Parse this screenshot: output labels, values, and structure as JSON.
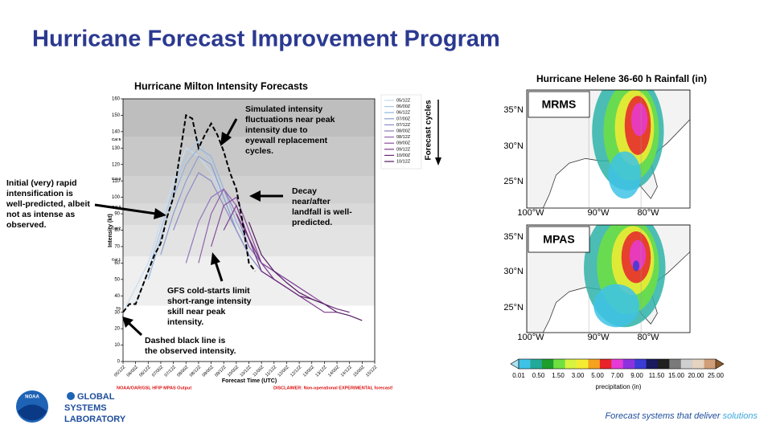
{
  "slide": {
    "title": "Hurricane Forecast Improvement Program",
    "logo": "NOAA",
    "lab": [
      "GLOBAL",
      "SYSTEMS",
      "LABORATORY"
    ],
    "tagline": "Forecast systems that deliver",
    "tagline_emphasis": "solutions"
  },
  "chart_data": {
    "type": "line",
    "title": "Hurricane Milton Intensity Forecasts",
    "x_label": "Forecast Time (UTC)",
    "y_label": "Intensity (kt)",
    "legend_title": "Forecast cycles",
    "source": "NOAA/OAR/GSL HFIP MPAS Output",
    "disclaimer": "DISCLAIMER: Non-operational EXPERIMENTAL forecast!",
    "xlim": [
      0,
      240
    ],
    "xticks": [
      {
        "value": 0,
        "label": "05/12Z"
      },
      {
        "value": 12,
        "label": "06/00Z"
      },
      {
        "value": 24,
        "label": "06/12Z"
      },
      {
        "value": 36,
        "label": "07/00Z"
      },
      {
        "value": 48,
        "label": "07/12Z"
      },
      {
        "value": 60,
        "label": "08/00Z"
      },
      {
        "value": 72,
        "label": "08/12Z"
      },
      {
        "value": 84,
        "label": "09/00Z"
      },
      {
        "value": 96,
        "label": "09/12Z"
      },
      {
        "value": 108,
        "label": "10/00Z"
      },
      {
        "value": 120,
        "label": "10/12Z"
      },
      {
        "value": 132,
        "label": "11/00Z"
      },
      {
        "value": 144,
        "label": "11/12Z"
      },
      {
        "value": 156,
        "label": "12/00Z"
      },
      {
        "value": 168,
        "label": "12/12Z"
      },
      {
        "value": 180,
        "label": "13/00Z"
      },
      {
        "value": 192,
        "label": "13/12Z"
      },
      {
        "value": 204,
        "label": "14/00Z"
      },
      {
        "value": 216,
        "label": "14/12Z"
      },
      {
        "value": 228,
        "label": "15/00Z"
      },
      {
        "value": 240,
        "label": "15/12Z"
      }
    ],
    "ylim": [
      0,
      160
    ],
    "yticks": [
      0,
      10,
      20,
      30,
      40,
      50,
      60,
      70,
      80,
      90,
      100,
      110,
      120,
      130,
      140,
      150,
      160
    ],
    "category_bands": [
      {
        "label": "TS",
        "value": 34
      },
      {
        "label": "Cat 1",
        "value": 64
      },
      {
        "label": "Cat 2",
        "value": 83
      },
      {
        "label": "Cat 3",
        "value": 96
      },
      {
        "label": "Cat 4",
        "value": 113
      },
      {
        "label": "Cat 5",
        "value": 137
      }
    ],
    "band_colors": [
      "#ffffff",
      "#efefef",
      "#e3e3e3",
      "#d9d9d9",
      "#d1d1d1",
      "#c8c8c8",
      "#bebebe"
    ],
    "series": [
      {
        "color": "#000000",
        "dashed": true,
        "x": [
          0,
          6,
          12,
          18,
          24,
          30,
          36,
          42,
          48,
          54,
          60,
          66,
          72,
          78,
          84,
          90,
          96,
          102,
          108,
          114,
          120,
          126
        ],
        "values": [
          30,
          35,
          35,
          45,
          55,
          65,
          72,
          88,
          100,
          125,
          150,
          148,
          130,
          138,
          145,
          138,
          128,
          115,
          105,
          85,
          60,
          55
        ]
      },
      {
        "name": "05/12Z",
        "color": "#c6dcef",
        "x": [
          0,
          12,
          24,
          36,
          48,
          60,
          72,
          84,
          96,
          108,
          120
        ],
        "values": [
          30,
          45,
          60,
          85,
          110,
          130,
          125,
          115,
          100,
          80,
          65
        ]
      },
      {
        "name": "06/00Z",
        "color": "#abc8e6",
        "x": [
          12,
          24,
          36,
          48,
          60,
          72,
          84,
          96,
          108,
          120
        ],
        "values": [
          35,
          55,
          80,
          105,
          125,
          135,
          120,
          100,
          80,
          65
        ]
      },
      {
        "name": "06/12Z",
        "color": "#93b4dc",
        "x": [
          24,
          36,
          48,
          60,
          72,
          84,
          96,
          108,
          120,
          132
        ],
        "values": [
          50,
          75,
          100,
          120,
          130,
          125,
          105,
          85,
          70,
          60
        ]
      },
      {
        "name": "07/00Z",
        "color": "#8a9fd2",
        "x": [
          36,
          48,
          60,
          72,
          84,
          96,
          108,
          120,
          132,
          144
        ],
        "values": [
          65,
          90,
          110,
          125,
          120,
          100,
          80,
          65,
          55,
          50
        ]
      },
      {
        "name": "07/12Z",
        "color": "#8b8cc8",
        "x": [
          48,
          60,
          72,
          84,
          96,
          108,
          120,
          132,
          144,
          156
        ],
        "values": [
          80,
          100,
          115,
          110,
          95,
          80,
          65,
          55,
          50,
          45
        ]
      },
      {
        "name": "08/00Z",
        "color": "#8f78bb",
        "x": [
          60,
          72,
          84,
          96,
          108,
          120,
          132,
          144,
          156,
          168
        ],
        "values": [
          60,
          85,
          100,
          105,
          90,
          70,
          60,
          55,
          50,
          45
        ]
      },
      {
        "name": "08/12Z",
        "color": "#9062ad",
        "x": [
          72,
          84,
          96,
          108,
          120,
          132,
          144,
          156,
          168,
          180
        ],
        "values": [
          60,
          90,
          105,
          95,
          75,
          60,
          55,
          50,
          45,
          40
        ]
      },
      {
        "name": "09/00Z",
        "color": "#8a4d9e",
        "x": [
          84,
          96,
          108,
          120,
          132,
          144,
          156,
          168,
          180,
          192
        ],
        "values": [
          70,
          95,
          100,
          80,
          60,
          55,
          50,
          45,
          40,
          35
        ]
      },
      {
        "name": "09/12Z",
        "color": "#7c3a8c",
        "x": [
          96,
          108,
          120,
          132,
          144,
          156,
          168,
          180,
          192,
          204
        ],
        "values": [
          80,
          95,
          75,
          60,
          50,
          45,
          40,
          35,
          30,
          30
        ]
      },
      {
        "name": "10/00Z",
        "color": "#6a2979",
        "x": [
          108,
          120,
          132,
          144,
          156,
          168,
          180,
          192,
          204,
          216
        ],
        "values": [
          90,
          75,
          55,
          50,
          45,
          40,
          38,
          35,
          32,
          30
        ]
      },
      {
        "name": "10/12Z",
        "color": "#531a61",
        "x": [
          120,
          132,
          144,
          156,
          168,
          180,
          192,
          204,
          216,
          228
        ],
        "values": [
          85,
          65,
          55,
          48,
          42,
          38,
          35,
          30,
          28,
          25
        ]
      }
    ],
    "annotations": [
      [
        "Simulated intensity",
        "fluctuations near peak",
        "intensity due to",
        "eyewall replacement",
        "cycles."
      ],
      [
        "Decay",
        "near/after",
        "landfall is well-",
        "predicted."
      ],
      [
        "Initial (very) rapid",
        "intensification is",
        "well-predicted, albeit",
        "not as intense as",
        "observed."
      ],
      [
        "GFS cold-starts limit",
        "short-range intensity",
        "skill near peak",
        "intensity."
      ],
      [
        "Dashed black line is",
        "the observed intensity."
      ]
    ]
  },
  "map_data": {
    "title": "Hurricane Helene 36-60 h Rainfall (in)",
    "panels": [
      "MRMS",
      "MPAS"
    ],
    "lat_labels": [
      "35°N",
      "30°N",
      "25°N"
    ],
    "lon_labels": [
      "100°W",
      "90°W",
      "80°W"
    ],
    "colorbar": {
      "labels": [
        "0.01",
        "0.50",
        "1.50",
        "3.00",
        "5.00",
        "7.00",
        "9.00",
        "11.50",
        "15.00",
        "20.00",
        "25.00"
      ],
      "colors": [
        "#aee3f2",
        "#3ec3e6",
        "#22a99a",
        "#1f9e2e",
        "#6fe040",
        "#d8f240",
        "#f4ec32",
        "#f5a21f",
        "#e8232a",
        "#e63bd6",
        "#8d33de",
        "#3b3bd6",
        "#1a1a5e",
        "#202020",
        "#7a7a7a",
        "#cfcfcf",
        "#e6d3c0",
        "#d09e78",
        "#8a5a2c"
      ],
      "label": "precipitation (in)"
    }
  }
}
